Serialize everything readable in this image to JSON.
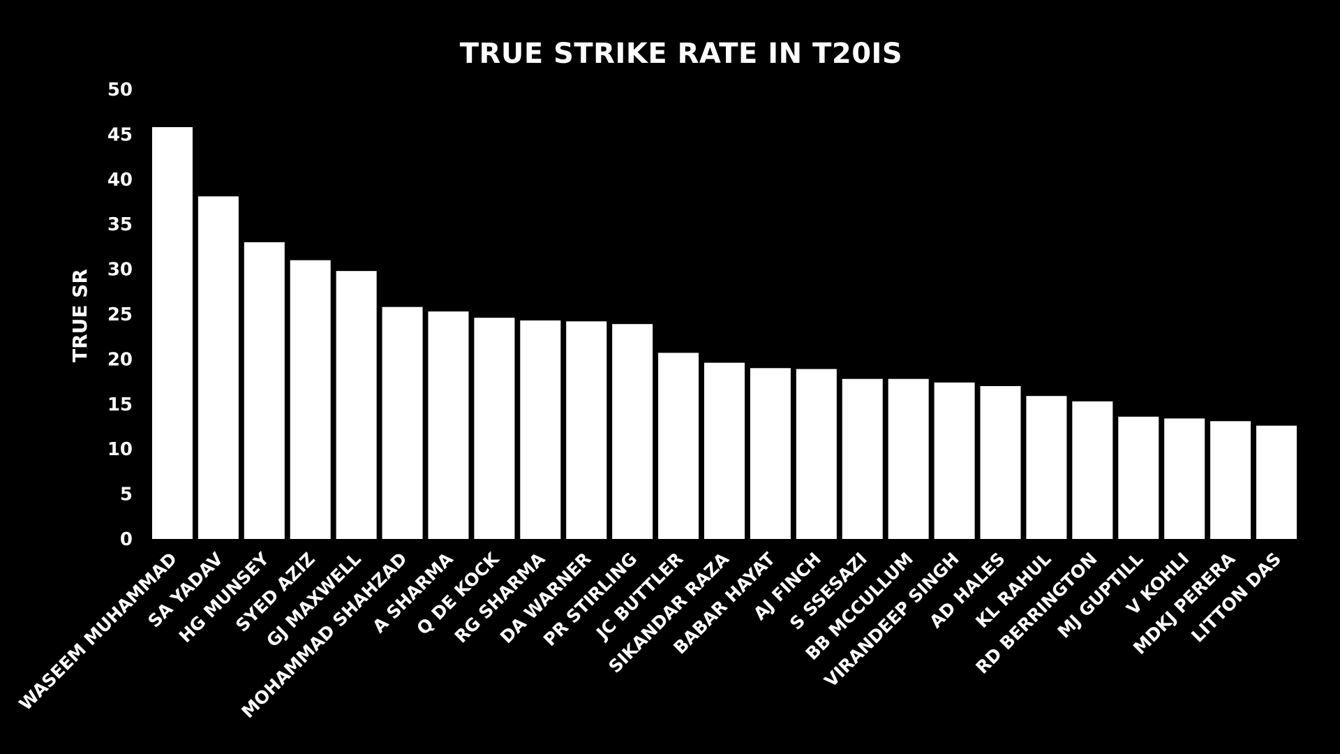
{
  "colors": {
    "background": "#000000",
    "bar": "#ffffff",
    "text": "#ffffff"
  },
  "chart_data": {
    "type": "bar",
    "title": "TRUE STRIKE RATE IN T20IS",
    "xlabel": "",
    "ylabel": "TRUE SR",
    "ylim": [
      0,
      50
    ],
    "yticks": [
      0,
      5,
      10,
      15,
      20,
      25,
      30,
      35,
      40,
      45,
      50
    ],
    "grid": false,
    "legend": "none",
    "categories": [
      "WASEEM MUHAMMAD",
      "SA YADAV",
      "HG MUNSEY",
      "SYED AZIZ",
      "GJ MAXWELL",
      "MOHAMMAD SHAHZAD",
      "A SHARMA",
      "Q DE KOCK",
      "RG SHARMA",
      "DA WARNER",
      "PR STIRLING",
      "JC BUTTLER",
      "SIKANDAR RAZA",
      "BABAR HAYAT",
      "AJ FINCH",
      "S SSESAZI",
      "BB MCCULLUM",
      "VIRANDEEP SINGH",
      "AD HALES",
      "KL RAHUL",
      "RD BERRINGTON",
      "MJ GUPTILL",
      "V KOHLI",
      "MDKJ PERERA",
      "LITTON DAS"
    ],
    "values": [
      45.8,
      38.1,
      33.0,
      31.0,
      29.8,
      25.8,
      25.3,
      24.6,
      24.3,
      24.2,
      23.9,
      20.7,
      19.6,
      19.0,
      18.9,
      17.8,
      17.8,
      17.4,
      17.0,
      15.9,
      15.3,
      13.6,
      13.4,
      13.1,
      12.6
    ]
  }
}
